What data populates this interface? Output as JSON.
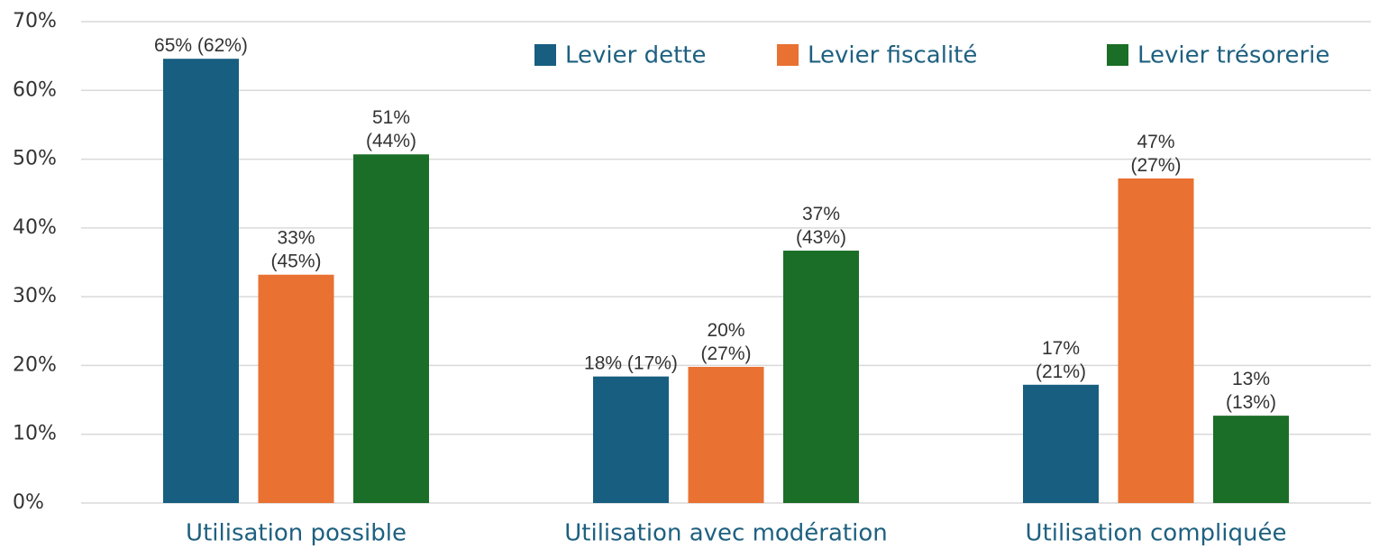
{
  "chart_data": {
    "type": "bar",
    "categories": [
      "Utilisation possible",
      "Utilisation avec modération",
      "Utilisation compliquée"
    ],
    "series": [
      {
        "name": "Levier dette",
        "color": "#175e80",
        "values": [
          64.6,
          18.4,
          17.2
        ],
        "value_labels": [
          "65% (62%)",
          "18% (17%)",
          "17%\n(21%)"
        ]
      },
      {
        "name": "Levier fiscalité",
        "color": "#e97132",
        "values": [
          33.2,
          19.8,
          47.2
        ],
        "value_labels": [
          "33%\n(45%)",
          "20%\n(27%)",
          "47%\n(27%)"
        ]
      },
      {
        "name": "Levier trésorerie",
        "color": "#1b6e27",
        "values": [
          50.7,
          36.7,
          12.7
        ],
        "value_labels": [
          "51%\n(44%)",
          "37%\n(43%)",
          "13%\n(13%)"
        ]
      }
    ],
    "ylim": [
      0,
      70
    ],
    "yticks": [
      {
        "value": 0,
        "label": "0%"
      },
      {
        "value": 10,
        "label": "10%"
      },
      {
        "value": 20,
        "label": "20%"
      },
      {
        "value": 30,
        "label": "30%"
      },
      {
        "value": 40,
        "label": "40%"
      },
      {
        "value": 50,
        "label": "50%"
      },
      {
        "value": 60,
        "label": "60%"
      },
      {
        "value": 70,
        "label": "70%"
      }
    ],
    "grid": true,
    "legend": "top-right"
  }
}
